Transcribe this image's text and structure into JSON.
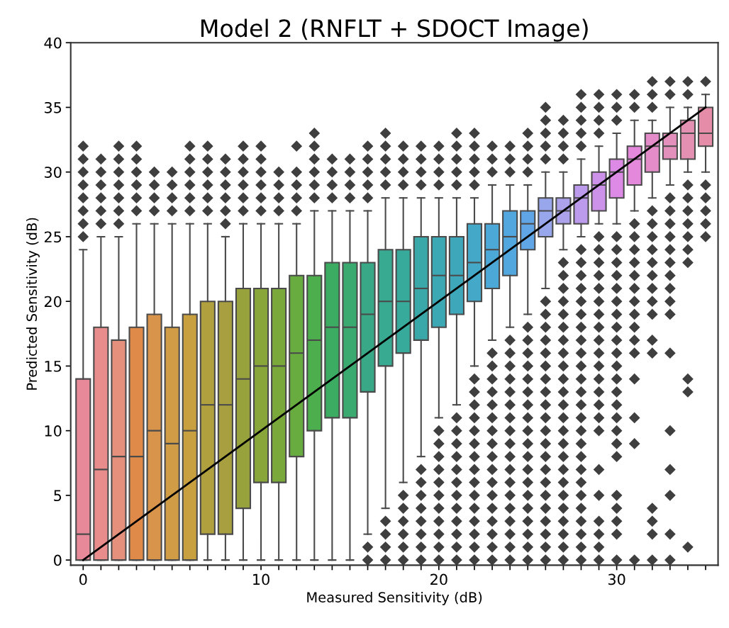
{
  "chart_data": {
    "type": "box",
    "title": "Model 2 (RNFLT + SDOCT Image)",
    "xlabel": "Measured Sensitivity (dB)",
    "ylabel": "Predicted Sensitivity (dB)",
    "categories": [
      "0",
      null,
      null,
      null,
      null,
      null,
      null,
      null,
      null,
      null,
      "10",
      null,
      null,
      null,
      null,
      null,
      null,
      null,
      null,
      null,
      "20",
      null,
      null,
      null,
      null,
      null,
      null,
      null,
      null,
      null,
      "30",
      null,
      null,
      null,
      null,
      null
    ],
    "colors": [
      "#e8899a",
      "#e88d8c",
      "#e4907c",
      "#e08a4a",
      "#d8944a",
      "#d09c46",
      "#c8a040",
      "#b0a03e",
      "#a8a040",
      "#98a23c",
      "#88a63a",
      "#7aa83a",
      "#68ac40",
      "#4cae4c",
      "#3cac62",
      "#3aaa70",
      "#38a886",
      "#38aa92",
      "#38aa9c",
      "#3aa8a8",
      "#3ca8b4",
      "#3ea8ba",
      "#44a8c8",
      "#4ca8d6",
      "#52a8de",
      "#60a6e6",
      "#98a6ec",
      "#aca2ec",
      "#bc9aec",
      "#cc92ea",
      "#dc8ae6",
      "#e488dc",
      "#e48cca",
      "#e490bc",
      "#e490b2",
      "#e48ca8"
    ],
    "boxes": [
      {
        "low": 0,
        "q1": 0,
        "median": 2,
        "q3": 14,
        "high": 24,
        "outliers": [
          25,
          26,
          27,
          28,
          29,
          30,
          31,
          32
        ]
      },
      {
        "low": 0,
        "q1": 0,
        "median": 7,
        "q3": 18,
        "high": 25,
        "outliers": [
          26,
          27,
          28,
          29,
          30,
          31
        ]
      },
      {
        "low": 0,
        "q1": 0,
        "median": 8,
        "q3": 17,
        "high": 25,
        "outliers": [
          26,
          27,
          28,
          29,
          30,
          31,
          32
        ]
      },
      {
        "low": 0,
        "q1": 0,
        "median": 8,
        "q3": 18,
        "high": 26,
        "outliers": [
          27,
          28,
          29,
          30,
          31,
          32
        ]
      },
      {
        "low": 0,
        "q1": 0,
        "median": 10,
        "q3": 19,
        "high": 26,
        "outliers": [
          27,
          28,
          29,
          30
        ]
      },
      {
        "low": 0,
        "q1": 0,
        "median": 9,
        "q3": 18,
        "high": 26,
        "outliers": [
          27,
          28,
          29,
          30
        ]
      },
      {
        "low": 0,
        "q1": 0,
        "median": 10,
        "q3": 19,
        "high": 26,
        "outliers": [
          27,
          28,
          29,
          30,
          31,
          32
        ]
      },
      {
        "low": 0,
        "q1": 2,
        "median": 12,
        "q3": 20,
        "high": 26,
        "outliers": [
          27,
          28,
          29,
          30,
          31,
          32
        ]
      },
      {
        "low": 0,
        "q1": 2,
        "median": 12,
        "q3": 20,
        "high": 25,
        "outliers": [
          26,
          27,
          28,
          29,
          30,
          31
        ]
      },
      {
        "low": 0,
        "q1": 4,
        "median": 14,
        "q3": 21,
        "high": 26,
        "outliers": [
          27,
          28,
          29,
          30,
          31,
          32
        ]
      },
      {
        "low": 0,
        "q1": 6,
        "median": 15,
        "q3": 21,
        "high": 26,
        "outliers": [
          27,
          28,
          29,
          30,
          31,
          32
        ]
      },
      {
        "low": 0,
        "q1": 6,
        "median": 15,
        "q3": 21,
        "high": 26,
        "outliers": [
          27,
          28,
          29,
          30
        ]
      },
      {
        "low": 0,
        "q1": 8,
        "median": 16,
        "q3": 22,
        "high": 26,
        "outliers": [
          27,
          28,
          29,
          30,
          32
        ]
      },
      {
        "low": 0,
        "q1": 10,
        "median": 17,
        "q3": 22,
        "high": 27,
        "outliers": [
          28,
          29,
          30,
          31,
          32,
          33
        ]
      },
      {
        "low": 0,
        "q1": 11,
        "median": 18,
        "q3": 23,
        "high": 27,
        "outliers": [
          28,
          29,
          30,
          31
        ]
      },
      {
        "low": 0,
        "q1": 11,
        "median": 18,
        "q3": 23,
        "high": 27,
        "outliers": [
          28,
          29,
          30,
          31
        ]
      },
      {
        "low": 2,
        "q1": 13,
        "median": 19,
        "q3": 23,
        "high": 27,
        "outliers": [
          0,
          1,
          28,
          29,
          30,
          31,
          32
        ]
      },
      {
        "low": 4,
        "q1": 15,
        "median": 20,
        "q3": 24,
        "high": 28,
        "outliers": [
          0,
          1,
          2,
          3,
          29,
          30,
          31,
          32,
          33
        ]
      },
      {
        "low": 6,
        "q1": 16,
        "median": 20,
        "q3": 24,
        "high": 28,
        "outliers": [
          0,
          1,
          2,
          3,
          4,
          5,
          29,
          30,
          31,
          32
        ]
      },
      {
        "low": 8,
        "q1": 17,
        "median": 21,
        "q3": 25,
        "high": 28,
        "outliers": [
          0,
          1,
          2,
          3,
          4,
          5,
          6,
          7,
          29,
          30,
          31,
          32
        ]
      },
      {
        "low": 11,
        "q1": 18,
        "median": 22,
        "q3": 25,
        "high": 28,
        "outliers": [
          0,
          1,
          2,
          3,
          4,
          5,
          6,
          7,
          8,
          9,
          10,
          29,
          30,
          31,
          32
        ]
      },
      {
        "low": 12,
        "q1": 19,
        "median": 22,
        "q3": 25,
        "high": 28,
        "outliers": [
          0,
          1,
          2,
          3,
          4,
          5,
          6,
          7,
          8,
          9,
          10,
          11,
          29,
          30,
          31,
          32,
          33
        ]
      },
      {
        "low": 15,
        "q1": 20,
        "median": 23,
        "q3": 26,
        "high": 28,
        "outliers": [
          0,
          1,
          2,
          3,
          4,
          5,
          6,
          7,
          8,
          9,
          10,
          11,
          12,
          13,
          14,
          29,
          30,
          31,
          32,
          33
        ]
      },
      {
        "low": 17,
        "q1": 21,
        "median": 24,
        "q3": 26,
        "high": 29,
        "outliers": [
          0,
          1,
          2,
          3,
          4,
          5,
          6,
          7,
          8,
          9,
          10,
          11,
          12,
          13,
          14,
          15,
          16,
          30,
          31,
          32
        ]
      },
      {
        "low": 18,
        "q1": 22,
        "median": 25,
        "q3": 27,
        "high": 29,
        "outliers": [
          0,
          1,
          2,
          3,
          4,
          5,
          6,
          7,
          8,
          9,
          10,
          11,
          12,
          13,
          14,
          15,
          16,
          17,
          30,
          31,
          32
        ]
      },
      {
        "low": 19,
        "q1": 24,
        "median": 26,
        "q3": 27,
        "high": 29,
        "outliers": [
          0,
          1,
          2,
          3,
          4,
          5,
          6,
          7,
          8,
          9,
          10,
          11,
          12,
          13,
          14,
          15,
          16,
          17,
          18,
          30,
          31,
          32,
          33
        ]
      },
      {
        "low": 21,
        "q1": 25,
        "median": 27,
        "q3": 28,
        "high": 30,
        "outliers": [
          0,
          1,
          2,
          3,
          4,
          5,
          6,
          7,
          8,
          9,
          10,
          11,
          12,
          13,
          14,
          15,
          16,
          17,
          18,
          19,
          20,
          31,
          32,
          33,
          34,
          35
        ]
      },
      {
        "low": 24,
        "q1": 26,
        "median": 27,
        "q3": 28,
        "high": 30,
        "outliers": [
          0,
          1,
          2,
          3,
          4,
          5,
          6,
          7,
          8,
          9,
          10,
          11,
          12,
          13,
          14,
          15,
          16,
          17,
          18,
          19,
          20,
          21,
          22,
          23,
          31,
          32,
          33,
          34
        ]
      },
      {
        "low": 25,
        "q1": 26,
        "median": 28,
        "q3": 29,
        "high": 31,
        "outliers": [
          0,
          1,
          2,
          3,
          4,
          5,
          6,
          7,
          8,
          9,
          10,
          11,
          12,
          13,
          14,
          15,
          16,
          17,
          18,
          19,
          20,
          21,
          22,
          23,
          24,
          32,
          33,
          34,
          35,
          36
        ]
      },
      {
        "low": 26,
        "q1": 27,
        "median": 29,
        "q3": 30,
        "high": 32,
        "outliers": [
          0,
          1,
          2,
          3,
          5,
          7,
          10,
          11,
          12,
          13,
          14,
          15,
          16,
          17,
          18,
          19,
          20,
          21,
          22,
          23,
          24,
          25,
          33,
          34,
          35,
          36
        ]
      },
      {
        "low": 26,
        "q1": 28,
        "median": 30,
        "q3": 31,
        "high": 33,
        "outliers": [
          0,
          2,
          3,
          4,
          5,
          8,
          9,
          10,
          11,
          12,
          13,
          14,
          15,
          16,
          17,
          18,
          19,
          20,
          21,
          22,
          23,
          24,
          25,
          34,
          35,
          36
        ]
      },
      {
        "low": 27,
        "q1": 29,
        "median": 31,
        "q3": 32,
        "high": 34,
        "outliers": [
          0,
          9,
          11,
          14,
          16,
          17,
          18,
          19,
          20,
          21,
          22,
          23,
          24,
          25,
          26,
          35,
          36
        ]
      },
      {
        "low": 28,
        "q1": 30,
        "median": 32,
        "q3": 33,
        "high": 34,
        "outliers": [
          0,
          2,
          3,
          4,
          16,
          17,
          19,
          20,
          21,
          22,
          23,
          24,
          25,
          26,
          27,
          35,
          36,
          37
        ]
      },
      {
        "low": 29,
        "q1": 31,
        "median": 32,
        "q3": 33,
        "high": 35,
        "outliers": [
          0,
          2,
          5,
          7,
          10,
          16,
          19,
          20,
          21,
          22,
          23,
          24,
          25,
          26,
          27,
          28,
          36,
          37
        ]
      },
      {
        "low": 30,
        "q1": 31,
        "median": 33,
        "q3": 34,
        "high": 35,
        "outliers": [
          1,
          13,
          14,
          23,
          24,
          25,
          26,
          27,
          28,
          29,
          36,
          37
        ]
      },
      {
        "low": 30,
        "q1": 32,
        "median": 33,
        "q3": 35,
        "high": 36,
        "outliers": [
          25,
          26,
          27,
          28,
          29,
          37
        ]
      }
    ],
    "series": [
      {
        "type": "line",
        "values": [
          0,
          1,
          2,
          3,
          4,
          5,
          6,
          7,
          8,
          9,
          10,
          11,
          12,
          13,
          14,
          15,
          16,
          17,
          18,
          19,
          20,
          21,
          22,
          23,
          24,
          25,
          26,
          27,
          28,
          29,
          30,
          31,
          32,
          33,
          34,
          35
        ],
        "color": "#000000",
        "marker": "none"
      }
    ],
    "marker": "diamond",
    "ylim": [
      -0.4,
      40
    ],
    "yticks": [
      0,
      5,
      10,
      15,
      20,
      25,
      30,
      35,
      40
    ]
  }
}
